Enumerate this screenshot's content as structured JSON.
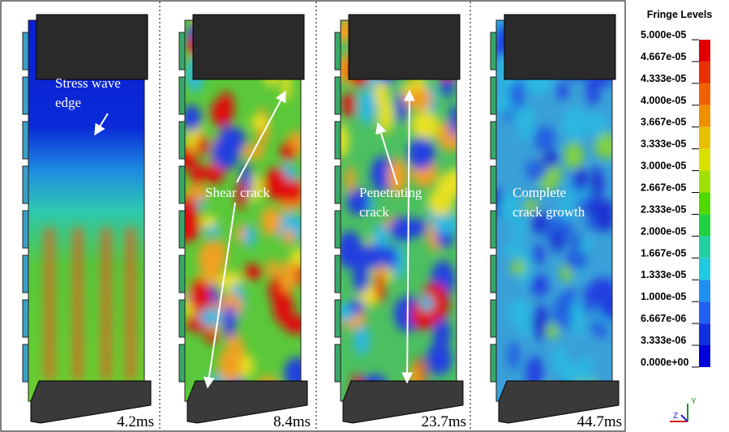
{
  "panels": [
    {
      "time": "4.2ms",
      "annotation": [
        "Stress wave",
        "edge"
      ]
    },
    {
      "time": "8.4ms",
      "annotation": [
        "Shear crack"
      ]
    },
    {
      "time": "23.7ms",
      "annotation": [
        "Penetrating",
        "crack"
      ]
    },
    {
      "time": "44.7ms",
      "annotation": [
        "Complete",
        "crack growth"
      ]
    }
  ],
  "legend": {
    "title": "Fringe Levels",
    "levels": [
      "5.000e-05",
      "4.667e-05",
      "4.333e-05",
      "4.000e-05",
      "3.667e-05",
      "3.333e-05",
      "3.000e-05",
      "2.667e-05",
      "2.333e-05",
      "2.000e-05",
      "1.667e-05",
      "1.333e-05",
      "1.000e-05",
      "6.667e-06",
      "3.333e-06",
      "0.000e+00"
    ]
  },
  "triad": {
    "y": "Y",
    "z": "Z"
  }
}
